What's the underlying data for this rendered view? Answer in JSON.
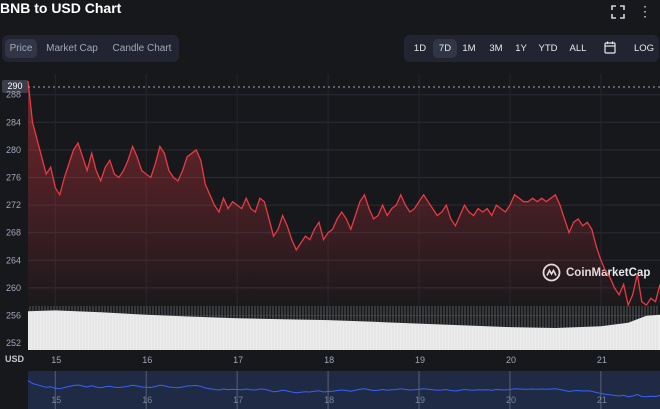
{
  "title": "BNB to USD Chart",
  "tabs": [
    {
      "label": "Price",
      "active": true
    },
    {
      "label": "Market Cap",
      "active": false
    },
    {
      "label": "Candle Chart",
      "active": false
    }
  ],
  "ranges": [
    {
      "label": "1D",
      "active": false
    },
    {
      "label": "7D",
      "active": true
    },
    {
      "label": "1M",
      "active": false
    },
    {
      "label": "3M",
      "active": false
    },
    {
      "label": "1Y",
      "active": false
    },
    {
      "label": "YTD",
      "active": false
    },
    {
      "label": "ALL",
      "active": false
    },
    {
      "label": "LOG",
      "active": false
    }
  ],
  "icons": {
    "fullscreen": "fullscreen-icon",
    "more": "more-options-icon",
    "calendar": "calendar-icon"
  },
  "watermark": "CoinMarketCap",
  "current_price_label": "290",
  "axis_unit": "USD",
  "colors": {
    "line": "#ea3943",
    "background": "#17181b",
    "navigator_line": "#3861fb"
  },
  "chart_data": {
    "type": "area",
    "y_ticks": [
      252,
      256,
      260,
      264,
      268,
      272,
      276,
      280,
      284,
      288
    ],
    "y_tick_labels": [
      "252",
      "256",
      "260",
      "264",
      "268",
      "272",
      "276",
      "280",
      "284",
      "288"
    ],
    "ylim": [
      251,
      291
    ],
    "x_tick_labels": [
      "15",
      "16",
      "17",
      "18",
      "19",
      "20",
      "21"
    ],
    "x_tick_days": [
      15,
      16,
      17,
      18,
      19,
      20,
      21
    ],
    "xlim": [
      14.7,
      21.65
    ],
    "grid": true,
    "series": [
      {
        "x": [
          14.7,
          14.75,
          14.82,
          14.9,
          14.95,
          15.0,
          15.05,
          15.1,
          15.15,
          15.2,
          15.25,
          15.3,
          15.35,
          15.4,
          15.45,
          15.5,
          15.55,
          15.6,
          15.65,
          15.7,
          15.75,
          15.8,
          15.85,
          15.9,
          15.95,
          16.0,
          16.05,
          16.1,
          16.15,
          16.2,
          16.25,
          16.3,
          16.35,
          16.4,
          16.45,
          16.5,
          16.55,
          16.6,
          16.65,
          16.7,
          16.75,
          16.8,
          16.85,
          16.9,
          16.95,
          17.0,
          17.05,
          17.1,
          17.15,
          17.2,
          17.25,
          17.3,
          17.35,
          17.4,
          17.45,
          17.5,
          17.55,
          17.6,
          17.65,
          17.7,
          17.75,
          17.8,
          17.85,
          17.9,
          17.95,
          18.0,
          18.05,
          18.1,
          18.15,
          18.2,
          18.25,
          18.3,
          18.35,
          18.4,
          18.45,
          18.5,
          18.55,
          18.6,
          18.65,
          18.7,
          18.75,
          18.8,
          18.85,
          18.9,
          18.95,
          19.0,
          19.05,
          19.1,
          19.15,
          19.2,
          19.25,
          19.3,
          19.35,
          19.4,
          19.45,
          19.5,
          19.55,
          19.6,
          19.65,
          19.7,
          19.75,
          19.8,
          19.85,
          19.9,
          19.95,
          20.0,
          20.05,
          20.1,
          20.15,
          20.2,
          20.25,
          20.3,
          20.35,
          20.4,
          20.45,
          20.5,
          20.55,
          20.6,
          20.65,
          20.7,
          20.75,
          20.8,
          20.85,
          20.9,
          20.95,
          21.0,
          21.05,
          21.1,
          21.15,
          21.2,
          21.25,
          21.3,
          21.35,
          21.4,
          21.45,
          21.5,
          21.55,
          21.6,
          21.65
        ],
        "y": [
          290,
          284,
          280.5,
          276.5,
          277.5,
          274.5,
          273.5,
          276.0,
          278.0,
          280.0,
          281.0,
          279.0,
          277.0,
          279.5,
          277.0,
          275.5,
          277.5,
          278.5,
          276.5,
          276.0,
          277.0,
          278.5,
          280.5,
          279.0,
          277.0,
          276.5,
          276.0,
          278.0,
          280.5,
          279.5,
          277.0,
          276.0,
          275.5,
          277.0,
          279.0,
          279.5,
          280.0,
          278.5,
          275.0,
          273.5,
          272.0,
          271.0,
          273.0,
          271.5,
          272.5,
          272.0,
          271.5,
          273.0,
          271.5,
          271.0,
          273.0,
          272.5,
          270.0,
          267.5,
          268.5,
          270.5,
          269.0,
          267.0,
          265.5,
          266.5,
          267.5,
          267.0,
          268.5,
          269.5,
          267.0,
          268.0,
          268.5,
          270.0,
          271.0,
          270.0,
          268.5,
          270.5,
          272.5,
          273.5,
          271.5,
          270.0,
          270.5,
          272.0,
          270.5,
          271.5,
          272.0,
          273.5,
          272.0,
          271.0,
          271.5,
          272.5,
          273.5,
          272.5,
          271.5,
          270.5,
          271.0,
          272.0,
          270.0,
          269.0,
          270.5,
          272.0,
          271.0,
          270.5,
          271.5,
          271.0,
          271.5,
          270.5,
          272.0,
          271.5,
          271.0,
          272.0,
          273.5,
          273.0,
          272.5,
          272.5,
          273.0,
          272.5,
          273.0,
          272.5,
          273.0,
          273.5,
          272.0,
          270.0,
          268.0,
          269.5,
          270.0,
          269.0,
          269.5,
          268.5,
          266.0,
          264.0,
          262.5,
          261.5,
          260.0,
          259.0,
          260.5,
          257.5,
          259.0,
          262.0,
          258.0,
          257.5,
          258.5,
          258.0,
          260.5
        ]
      }
    ],
    "volume": {
      "x": [
        14.7,
        15.0,
        15.5,
        16.0,
        16.5,
        17.0,
        17.5,
        18.0,
        18.5,
        19.0,
        19.5,
        20.0,
        20.5,
        21.0,
        21.3,
        21.5,
        21.65
      ],
      "values": [
        0.88,
        0.9,
        0.86,
        0.8,
        0.76,
        0.72,
        0.7,
        0.68,
        0.64,
        0.6,
        0.56,
        0.52,
        0.5,
        0.54,
        0.62,
        0.78,
        0.8
      ]
    }
  }
}
